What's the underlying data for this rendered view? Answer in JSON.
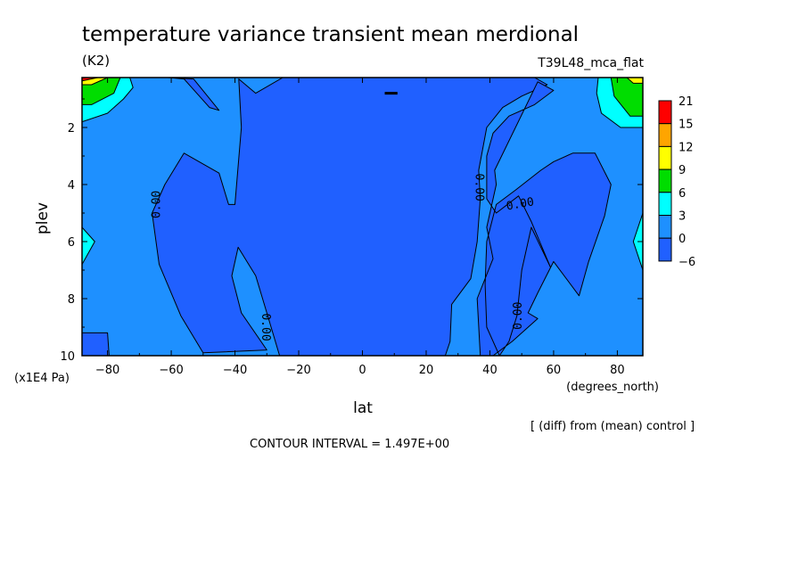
{
  "title": "temperature variance transient mean merdional",
  "units": "(K2)",
  "run_label": "T39L48_mca_flat",
  "note": "[ (diff) from (mean) control ]",
  "contour_interval": "CONTOUR INTERVAL = 1.497E+00",
  "chart_data": {
    "type": "heatmap",
    "x": {
      "label": "lat",
      "units": "(degrees_north)",
      "range": [
        -88,
        88
      ],
      "ticks": [
        -80,
        -60,
        -40,
        -20,
        0,
        20,
        40,
        60,
        80
      ]
    },
    "y": {
      "label": "plev",
      "units": "(x1E4 Pa)",
      "range": [
        0.25,
        10
      ],
      "inverted": true,
      "ticks": [
        2,
        4,
        6,
        8,
        10
      ]
    },
    "colorbar": {
      "levels": [
        "21",
        "15",
        "12",
        "9",
        "6",
        "3",
        "0",
        "-6"
      ],
      "colors": [
        "#ff0000",
        "#ffa500",
        "#ffff00",
        "#00dd00",
        "#00ffff",
        "#1e90ff",
        "#2060ff"
      ]
    },
    "contour_labels": [
      "0.00",
      "0.00",
      "0.00",
      "0.00",
      "0.00",
      "0.00"
    ],
    "regions": [
      {
        "level": "<0",
        "color": "#2060ff",
        "polygons": [
          [
            [
              -38.8,
              0.3
            ],
            [
              -38,
              2
            ],
            [
              -40,
              4.7
            ],
            [
              -42,
              4.7
            ],
            [
              -45,
              3.6
            ],
            [
              -56,
              2.9
            ],
            [
              -62,
              4
            ],
            [
              -66,
              5
            ],
            [
              -63.8,
              6.8
            ],
            [
              -57,
              8.6
            ],
            [
              -50,
              9.9
            ],
            [
              -30,
              9.8
            ],
            [
              -38,
              8.5
            ],
            [
              -41,
              7.2
            ],
            [
              -39,
              6.2
            ],
            [
              -33.5,
              7.2
            ],
            [
              -30,
              8.5
            ],
            [
              -26,
              10
            ],
            [
              26,
              10
            ],
            [
              27.5,
              9.5
            ],
            [
              28,
              8.2
            ],
            [
              34,
              7.3
            ],
            [
              36,
              6
            ],
            [
              37,
              4.5
            ],
            [
              36.5,
              3.5
            ],
            [
              39,
              2
            ],
            [
              44,
              1.3
            ],
            [
              50,
              0.9
            ],
            [
              58,
              0.5
            ],
            [
              54,
              0.25
            ],
            [
              -10,
              0.25
            ],
            [
              -25,
              0.25
            ],
            [
              -33.5,
              0.8
            ]
          ],
          [
            [
              -61,
              0.25
            ],
            [
              -56,
              0.3
            ],
            [
              -48,
              1.3
            ],
            [
              -45,
              1.4
            ],
            [
              -53,
              0.3
            ]
          ],
          [
            [
              55,
              0.4
            ],
            [
              60,
              0.7
            ],
            [
              54,
              1.2
            ],
            [
              46,
              1.6
            ],
            [
              41,
              2.2
            ],
            [
              39,
              3
            ],
            [
              39,
              4.5
            ],
            [
              42,
              5
            ],
            [
              49,
              4.4
            ],
            [
              53,
              5.3
            ],
            [
              59,
              6.9
            ],
            [
              53,
              5.5
            ],
            [
              50,
              7
            ],
            [
              48.5,
              8.6
            ],
            [
              46,
              9.5
            ],
            [
              43,
              10
            ],
            [
              39,
              9
            ],
            [
              38.5,
              7.5
            ],
            [
              39,
              6
            ],
            [
              42,
              4.7
            ],
            [
              48,
              4.2
            ],
            [
              56,
              3.5
            ],
            [
              60,
              3.2
            ],
            [
              66,
              2.9
            ],
            [
              73,
              2.9
            ],
            [
              78,
              4
            ],
            [
              76,
              5.1
            ],
            [
              71,
              6.7
            ],
            [
              68,
              7.9
            ],
            [
              60,
              6.7
            ],
            [
              55,
              7.8
            ],
            [
              52,
              8.5
            ],
            [
              55,
              8.7
            ],
            [
              47,
              9.5
            ],
            [
              41,
              10
            ],
            [
              37,
              10
            ],
            [
              36,
              8
            ],
            [
              38.5,
              7.3
            ],
            [
              41,
              6.6
            ],
            [
              39,
              5.5
            ],
            [
              42,
              4
            ],
            [
              41.5,
              3.5
            ]
          ],
          [
            [
              -88,
              9.2
            ],
            [
              -80,
              9.2
            ],
            [
              -79.5,
              10
            ],
            [
              -88,
              10
            ]
          ]
        ]
      },
      {
        "level": ">3",
        "color": "#00ffff",
        "polygons": [
          [
            [
              -88,
              0.25
            ],
            [
              -73,
              0.25
            ],
            [
              -72,
              0.6
            ],
            [
              -75,
              1
            ],
            [
              -80,
              1.5
            ],
            [
              -88,
              1.8
            ]
          ],
          [
            [
              -88,
              5.5
            ],
            [
              -84,
              6
            ],
            [
              -88,
              6.8
            ]
          ],
          [
            [
              88,
              0.25
            ],
            [
              74,
              0.25
            ],
            [
              73.5,
              0.8
            ],
            [
              75,
              1.5
            ],
            [
              81,
              2
            ],
            [
              88,
              2
            ]
          ],
          [
            [
              88,
              5
            ],
            [
              85,
              6
            ],
            [
              88,
              7
            ]
          ]
        ]
      },
      {
        "level": ">6",
        "color": "#00dd00",
        "polygons": [
          [
            [
              -88,
              0.25
            ],
            [
              -76,
              0.25
            ],
            [
              -78,
              0.8
            ],
            [
              -85,
              1.2
            ],
            [
              -88,
              1.2
            ]
          ],
          [
            [
              88,
              0.25
            ],
            [
              78,
              0.25
            ],
            [
              79,
              0.9
            ],
            [
              84,
              1.6
            ],
            [
              88,
              1.6
            ]
          ]
        ]
      },
      {
        "level": ">9",
        "color": "#ffff00",
        "polygons": [
          [
            [
              -88,
              0.25
            ],
            [
              -80,
              0.25
            ],
            [
              -85,
              0.5
            ],
            [
              -88,
              0.5
            ]
          ],
          [
            [
              88,
              0.25
            ],
            [
              83,
              0.25
            ],
            [
              85,
              0.45
            ],
            [
              88,
              0.45
            ]
          ]
        ]
      },
      {
        "level": ">15",
        "color": "#ff0000",
        "polygons": [
          [
            [
              -88,
              0.25
            ],
            [
              -83,
              0.25
            ],
            [
              -88,
              0.37
            ]
          ]
        ]
      }
    ]
  }
}
